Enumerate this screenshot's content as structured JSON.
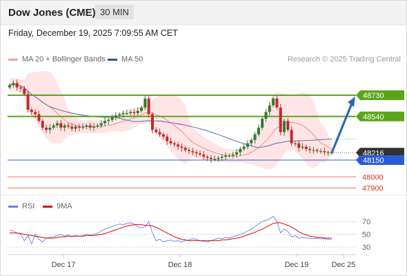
{
  "header": {
    "title": "Dow Jones (CME)",
    "timeframe": "30 MIN",
    "timestamp": "Friday, December 19, 2025 7:09:55 AM CET"
  },
  "legend": {
    "ma20": "MA 20 + Bollinger Bands",
    "ma50": "MA 50",
    "copyright": "Research © 2025 Trading Central",
    "rsi": "RSI",
    "rsi_ma": "9MA"
  },
  "colors": {
    "candle_up": "#2e7d32",
    "candle_down": "#c62828",
    "bollinger_fill": "#ffdcdc",
    "ma20": "#f08080",
    "ma50": "#4a5fa0",
    "resistance": "#5aa619",
    "pivot": "#2a5bd7",
    "support": "#f07070",
    "last_price": "#333333",
    "rsi": "#5b84f0",
    "rsi_ma": "#e00000",
    "arrow": "#2f67b4"
  },
  "chart_data": [
    {
      "type": "candlestick",
      "x_labels": [
        "Dec 17",
        "Dec 18",
        "Dec 19",
        "Dec 25"
      ],
      "y_range": [
        47850,
        48900
      ],
      "series": [
        {
          "name": "MA 20 + Bollinger Bands"
        },
        {
          "name": "MA 50"
        }
      ],
      "levels": [
        {
          "value": 48730,
          "label": "48730",
          "kind": "resistance"
        },
        {
          "value": 48540,
          "label": "48540",
          "kind": "resistance"
        },
        {
          "value": 48216,
          "label": "48216",
          "kind": "last_price"
        },
        {
          "value": 48150,
          "label": "48150",
          "kind": "pivot"
        },
        {
          "value": 48000,
          "label": "48000",
          "kind": "support"
        },
        {
          "value": 47900,
          "label": "47900",
          "kind": "support"
        }
      ],
      "forecast_arrow": {
        "from": 48216,
        "to": 48730
      },
      "price_path": [
        48820,
        48840,
        48800,
        48790,
        48740,
        48600,
        48580,
        48560,
        48500,
        48440,
        48420,
        48440,
        48460,
        48480,
        48440,
        48460,
        48450,
        48430,
        48450,
        48440,
        48450,
        48460,
        48440,
        48450,
        48460,
        48480,
        48500,
        48510,
        48530,
        48550,
        48560,
        48570,
        48570,
        48580,
        48570,
        48590,
        48620,
        48700,
        48560,
        48420,
        48400,
        48380,
        48360,
        48320,
        48300,
        48290,
        48270,
        48260,
        48240,
        48230,
        48220,
        48210,
        48200,
        48180,
        48170,
        48160,
        48160,
        48170,
        48180,
        48190,
        48190,
        48200,
        48220,
        48250,
        48270,
        48300,
        48330,
        48380,
        48440,
        48520,
        48580,
        48640,
        48700,
        48620,
        48400,
        48500,
        48420,
        48300,
        48300,
        48260,
        48270,
        48250,
        48240,
        48240,
        48230,
        48230,
        48220,
        48220,
        48216
      ]
    },
    {
      "type": "line",
      "name": "RSI",
      "y_ticks": [
        70,
        50,
        30
      ],
      "y_range": [
        20,
        80
      ],
      "series": [
        {
          "name": "RSI",
          "values": [
            56,
            55,
            52,
            50,
            40,
            48,
            35,
            50,
            42,
            38,
            44,
            45,
            46,
            48,
            50,
            47,
            49,
            46,
            48,
            47,
            48,
            50,
            49,
            50,
            52,
            55,
            58,
            60,
            62,
            64,
            66,
            65,
            67,
            68,
            66,
            62,
            60,
            62,
            70,
            52,
            40,
            42,
            38,
            40,
            41,
            39,
            40,
            38,
            40,
            41,
            43,
            42,
            40,
            39,
            38,
            40,
            42,
            44,
            43,
            45,
            44,
            46,
            48,
            50,
            52,
            55,
            58,
            62,
            66,
            70,
            72,
            74,
            78,
            70,
            52,
            58,
            54,
            46,
            48,
            44,
            45,
            44,
            44,
            43,
            44,
            43,
            43,
            42,
            42
          ]
        },
        {
          "name": "9MA",
          "values": [
            52,
            52,
            52,
            51,
            50,
            49,
            48,
            47,
            46,
            45,
            44,
            44,
            44,
            45,
            46,
            46,
            47,
            47,
            47,
            47,
            47,
            48,
            48,
            48,
            49,
            50,
            51,
            53,
            55,
            57,
            59,
            61,
            63,
            64,
            65,
            65,
            65,
            64,
            64,
            63,
            61,
            58,
            55,
            52,
            49,
            46,
            44,
            42,
            41,
            40,
            40,
            40,
            40,
            40,
            40,
            40,
            40,
            40,
            41,
            41,
            42,
            43,
            44,
            45,
            47,
            49,
            51,
            53,
            56,
            58,
            61,
            64,
            67,
            68,
            68,
            66,
            64,
            61,
            58,
            54,
            51,
            49,
            47,
            46,
            45,
            45,
            44,
            44,
            44
          ]
        }
      ]
    }
  ],
  "axis": {
    "x": [
      "Dec 17",
      "Dec 18",
      "Dec 19",
      "Dec 25"
    ],
    "rsi_ticks": [
      "70",
      "50",
      "30"
    ]
  }
}
